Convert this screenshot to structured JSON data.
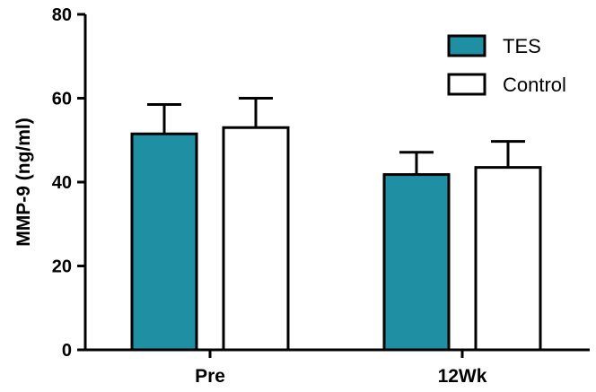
{
  "chart_data": {
    "type": "bar",
    "title": "",
    "ylabel": "MMP-9 (ng/ml)",
    "xlabel": "",
    "categories": [
      "Pre",
      "12Wk"
    ],
    "ylim": [
      0,
      80
    ],
    "yticks": [
      "0",
      "20",
      "40",
      "60",
      "80"
    ],
    "series": [
      {
        "name": "TES",
        "color": "#1f8fa3",
        "values": [
          51.5,
          41.8
        ],
        "errors": [
          7.0,
          5.3
        ]
      },
      {
        "name": "Control",
        "color": "#ffffff",
        "values": [
          53.0,
          43.5
        ],
        "errors": [
          7.0,
          6.2
        ]
      }
    ],
    "legend_position": "top-right",
    "grid": false
  }
}
